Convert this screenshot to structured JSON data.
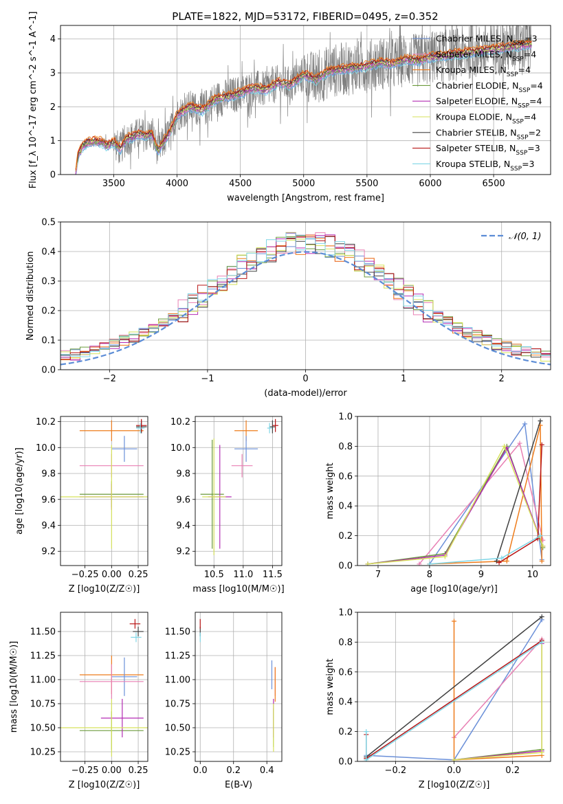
{
  "figure_title": "PLATE=1822, MJD=53172, FIBERID=0495, z=0.352",
  "colors": {
    "Chabrier MILES": "#6a8fd8",
    "Salpeter MILES": "#e87fb3",
    "Kroupa MILES": "#ee7b1a",
    "Chabrier ELODIE": "#6b9a3c",
    "Salpeter ELODIE": "#b32bb3",
    "Kroupa ELODIE": "#d6e25a",
    "Chabrier STELIB": "#404040",
    "Salpeter STELIB": "#b81414",
    "Kroupa STELIB": "#7fd6e6",
    "data": "#7f7f7f",
    "gaussian": "#5b8cd6"
  },
  "chart_data": [
    {
      "id": "spectrum",
      "type": "line",
      "title": "PLATE=1822, MJD=53172, FIBERID=0495, z=0.352",
      "xlabel": "wavelength [Angstrom, rest frame]",
      "ylabel": "Flux [f_λ 10^-17 erg cm^-2 s^-1 A^-1]",
      "xlim": [
        3080,
        6950
      ],
      "ylim": [
        0,
        4.4
      ],
      "xticks": [
        3500,
        4000,
        4500,
        5000,
        5500,
        6000,
        6500
      ],
      "yticks": [
        0,
        1,
        2,
        3,
        4
      ],
      "legend_position": "upper-right",
      "legend": [
        {
          "label": "Chabrier MILES, N",
          "sub": "SSP",
          "suffix": "=3",
          "color": "#6a8fd8"
        },
        {
          "label": "Salpeter MILES, N",
          "sub": "SSP",
          "suffix": "=4",
          "color": "#e87fb3"
        },
        {
          "label": "Kroupa MILES, N",
          "sub": "SSP",
          "suffix": "=4",
          "color": "#ee7b1a"
        },
        {
          "label": "Chabrier ELODIE, N",
          "sub": "SSP",
          "suffix": "=4",
          "color": "#6b9a3c"
        },
        {
          "label": "Salpeter ELODIE, N",
          "sub": "SSP",
          "suffix": "=4",
          "color": "#b32bb3"
        },
        {
          "label": "Kroupa ELODIE, N",
          "sub": "SSP",
          "suffix": "=4",
          "color": "#d6e25a"
        },
        {
          "label": "Chabrier STELIB, N",
          "sub": "SSP",
          "suffix": "=2",
          "color": "#404040"
        },
        {
          "label": "Salpeter STELIB, N",
          "sub": "SSP",
          "suffix": "=3",
          "color": "#b81414"
        },
        {
          "label": "Kroupa STELIB, N",
          "sub": "SSP",
          "suffix": "=3",
          "color": "#7fd6e6"
        }
      ],
      "continuum": {
        "x": [
          3200,
          3220,
          3260,
          3300,
          3350,
          3400,
          3450,
          3500,
          3550,
          3600,
          3650,
          3700,
          3750,
          3800,
          3850,
          3900,
          3950,
          4000,
          4100,
          4200,
          4300,
          4400,
          4500,
          4600,
          4700,
          4800,
          4900,
          5000,
          5100,
          5200,
          5300,
          5400,
          5500,
          5600,
          5700,
          5800,
          5900,
          6000,
          6100,
          6200,
          6300,
          6400,
          6500,
          6600,
          6700,
          6800
        ],
        "y": [
          0.05,
          0.6,
          0.85,
          0.95,
          0.98,
          0.95,
          0.85,
          0.95,
          0.75,
          1.05,
          1.1,
          1.2,
          1.15,
          1.2,
          0.7,
          1.0,
          1.3,
          1.75,
          2.0,
          1.9,
          2.2,
          2.3,
          2.4,
          2.55,
          2.5,
          2.7,
          2.65,
          2.95,
          2.8,
          3.05,
          3.1,
          3.15,
          3.2,
          3.3,
          3.25,
          3.4,
          3.35,
          3.45,
          3.5,
          3.55,
          3.6,
          3.65,
          3.7,
          3.75,
          3.8,
          3.85
        ]
      }
    },
    {
      "id": "residuals",
      "type": "area",
      "xlabel": "(data-model)/error",
      "ylabel": "Normed distribution",
      "xlim": [
        -2.5,
        2.5
      ],
      "ylim": [
        0,
        0.5
      ],
      "xticks": [
        -2,
        -1,
        0,
        1,
        2
      ],
      "yticks": [
        0.0,
        0.1,
        0.2,
        0.3,
        0.4,
        0.5
      ],
      "legend_position": "upper-right",
      "gaussian_label": "𝒩(0, 1)",
      "bin_width": 0.1
    },
    {
      "id": "age_vs_Z",
      "type": "scatter",
      "xlabel": "Z [log10(Z/Z☉)]",
      "ylabel": "age  [log10(age/yr)]",
      "xlim": [
        -0.48,
        0.34
      ],
      "ylim": [
        9.09,
        10.24
      ],
      "xticks": [
        -0.25,
        0.0,
        0.25
      ],
      "yticks": [
        9.2,
        9.4,
        9.6,
        9.8,
        10.0,
        10.2
      ],
      "points": [
        {
          "model": "Kroupa MILES",
          "x": 0.0,
          "xerr": 0.3,
          "y": 10.13,
          "yerr": 0.08
        },
        {
          "model": "Chabrier MILES",
          "x": 0.12,
          "xerr": 0.12,
          "y": 9.99,
          "yerr": 0.1
        },
        {
          "model": "Salpeter MILES",
          "x": 0.0,
          "xerr": 0.3,
          "y": 9.86,
          "yerr": 0.09
        },
        {
          "model": "Chabrier STELIB",
          "x": 0.28,
          "xerr": 0.05,
          "y": 10.16,
          "yerr": 0.05
        },
        {
          "model": "Salpeter STELIB",
          "x": 0.28,
          "xerr": 0.05,
          "y": 10.17,
          "yerr": 0.05
        },
        {
          "model": "Kroupa STELIB",
          "x": 0.27,
          "xerr": 0.04,
          "y": 10.15,
          "yerr": 0.04
        },
        {
          "model": "Chabrier ELODIE",
          "x": 0.0,
          "xerr": 0.3,
          "y": 9.64,
          "yerr": 0.1
        },
        {
          "model": "Salpeter ELODIE",
          "x": 0.0,
          "xerr": 0.3,
          "y": 9.62,
          "yerr": 0.1
        },
        {
          "model": "Kroupa ELODIE",
          "x": 0.0,
          "xerr": 0.5,
          "y": 9.62,
          "yerr": 0.4
        }
      ]
    },
    {
      "id": "age_vs_mass",
      "type": "scatter",
      "xlabel": "mass [log10(M/M☉)]",
      "ylabel": "",
      "xlim": [
        10.18,
        11.66
      ],
      "ylim": [
        9.09,
        10.24
      ],
      "xticks": [
        10.5,
        11.0,
        11.5
      ],
      "yticks": [
        9.2,
        9.4,
        9.6,
        9.8,
        10.0,
        10.2
      ],
      "points": [
        {
          "model": "Kroupa MILES",
          "x": 11.05,
          "xerr": 0.2,
          "y": 10.13,
          "yerr": 0.08
        },
        {
          "model": "Chabrier MILES",
          "x": 11.05,
          "xerr": 0.2,
          "y": 9.99,
          "yerr": 0.1
        },
        {
          "model": "Salpeter MILES",
          "x": 10.98,
          "xerr": 0.18,
          "y": 9.86,
          "yerr": 0.09
        },
        {
          "model": "Chabrier STELIB",
          "x": 11.5,
          "xerr": 0.05,
          "y": 10.16,
          "yerr": 0.05
        },
        {
          "model": "Salpeter STELIB",
          "x": 11.55,
          "xerr": 0.05,
          "y": 10.17,
          "yerr": 0.05
        },
        {
          "model": "Kroupa STELIB",
          "x": 11.45,
          "xerr": 0.04,
          "y": 10.15,
          "yerr": 0.04
        },
        {
          "model": "Chabrier ELODIE",
          "x": 10.47,
          "xerr": 0.2,
          "y": 9.64,
          "yerr": 0.42
        },
        {
          "model": "Salpeter ELODIE",
          "x": 10.6,
          "xerr": 0.2,
          "y": 9.62,
          "yerr": 0.4
        },
        {
          "model": "Kroupa ELODIE",
          "x": 10.5,
          "xerr": 0.2,
          "y": 9.62,
          "yerr": 0.45
        }
      ]
    },
    {
      "id": "weight_vs_age",
      "type": "line",
      "xlabel": "age  [log10(age/yr)]",
      "ylabel": "mass weight",
      "xlim": [
        6.6,
        10.35
      ],
      "ylim": [
        0.0,
        1.0
      ],
      "xticks": [
        7,
        8,
        9,
        10
      ],
      "yticks": [
        0.0,
        0.2,
        0.4,
        0.6,
        0.8,
        1.0
      ],
      "series": [
        {
          "model": "Chabrier MILES",
          "x": [
            8.0,
            9.85,
            10.18
          ],
          "y": [
            0.01,
            0.95,
            0.04
          ]
        },
        {
          "model": "Salpeter MILES",
          "x": [
            7.8,
            9.75,
            10.2
          ],
          "y": [
            0.01,
            0.82,
            0.17
          ]
        },
        {
          "model": "Kroupa MILES",
          "x": [
            8.0,
            9.5,
            10.15,
            10.18
          ],
          "y": [
            0.01,
            0.03,
            0.94,
            0.03
          ]
        },
        {
          "model": "Chabrier ELODIE",
          "x": [
            6.8,
            8.3,
            9.5,
            10.2
          ],
          "y": [
            0.01,
            0.08,
            0.8,
            0.12
          ]
        },
        {
          "model": "Salpeter ELODIE",
          "x": [
            6.8,
            8.3,
            9.5,
            10.2
          ],
          "y": [
            0.01,
            0.07,
            0.79,
            0.13
          ]
        },
        {
          "model": "Kroupa ELODIE",
          "x": [
            6.8,
            8.3,
            9.45,
            10.2
          ],
          "y": [
            0.01,
            0.06,
            0.8,
            0.13
          ]
        },
        {
          "model": "Chabrier STELIB",
          "x": [
            9.3,
            10.15
          ],
          "y": [
            0.03,
            0.97
          ]
        },
        {
          "model": "Salpeter STELIB",
          "x": [
            9.35,
            10.1,
            10.18
          ],
          "y": [
            0.02,
            0.18,
            0.81
          ]
        },
        {
          "model": "Kroupa STELIB",
          "x": [
            8.0,
            9.4,
            10.15
          ],
          "y": [
            0.01,
            0.05,
            0.2
          ]
        }
      ]
    },
    {
      "id": "mass_vs_Z",
      "type": "scatter",
      "xlabel": "Z [log10(Z/Z☉)]",
      "ylabel": "mass [log10(M/M☉)]",
      "xlim": [
        -0.48,
        0.34
      ],
      "ylim": [
        10.15,
        11.7
      ],
      "xticks": [
        -0.25,
        0.0,
        0.25
      ],
      "yticks": [
        10.25,
        10.5,
        10.75,
        11.0,
        11.25,
        11.5
      ],
      "points": [
        {
          "model": "Kroupa MILES",
          "x": 0.0,
          "xerr": 0.3,
          "y": 11.05,
          "yerr": 0.2
        },
        {
          "model": "Chabrier MILES",
          "x": 0.12,
          "xerr": 0.12,
          "y": 11.03,
          "yerr": 0.2
        },
        {
          "model": "Salpeter MILES",
          "x": 0.0,
          "xerr": 0.3,
          "y": 10.98,
          "yerr": 0.18
        },
        {
          "model": "Chabrier STELIB",
          "x": 0.25,
          "xerr": 0.05,
          "y": 11.5,
          "yerr": 0.05
        },
        {
          "model": "Salpeter STELIB",
          "x": 0.22,
          "xerr": 0.05,
          "y": 11.58,
          "yerr": 0.05
        },
        {
          "model": "Kroupa STELIB",
          "x": 0.23,
          "xerr": 0.05,
          "y": 11.44,
          "yerr": 0.05
        },
        {
          "model": "Chabrier ELODIE",
          "x": 0.0,
          "xerr": 0.3,
          "y": 10.47,
          "yerr": 0.2
        },
        {
          "model": "Salpeter ELODIE",
          "x": 0.1,
          "xerr": 0.2,
          "y": 10.6,
          "yerr": 0.2
        },
        {
          "model": "Kroupa ELODIE",
          "x": 0.0,
          "xerr": 0.5,
          "y": 10.5,
          "yerr": 0.3
        }
      ]
    },
    {
      "id": "mass_vs_ebv",
      "type": "scatter",
      "xlabel": "E(B-V)",
      "ylabel": "",
      "xlim": [
        -0.03,
        0.49
      ],
      "ylim": [
        10.15,
        11.7
      ],
      "xticks": [
        0.0,
        0.2,
        0.4
      ],
      "yticks": [
        10.25,
        10.5,
        10.75,
        11.0,
        11.25,
        11.5
      ],
      "points": [
        {
          "model": "Chabrier MILES",
          "x": 0.43,
          "yerr": 0.15,
          "y": 11.05
        },
        {
          "model": "Salpeter MILES",
          "x": 0.45,
          "yerr": 0.15,
          "y": 10.98
        },
        {
          "model": "Kroupa MILES",
          "x": 0.45,
          "yerr": 0.18,
          "y": 10.95
        },
        {
          "model": "Chabrier ELODIE",
          "x": 0.44,
          "yerr": 0.2,
          "y": 10.5
        },
        {
          "model": "Salpeter ELODIE",
          "x": 0.44,
          "yerr": 0.2,
          "y": 10.6
        },
        {
          "model": "Kroupa ELODIE",
          "x": 0.44,
          "yerr": 0.25,
          "y": 10.5
        },
        {
          "model": "Chabrier STELIB",
          "x": 0.0,
          "yerr": 0.05,
          "y": 11.5
        },
        {
          "model": "Salpeter STELIB",
          "x": 0.0,
          "yerr": 0.05,
          "y": 11.58
        },
        {
          "model": "Kroupa STELIB",
          "x": 0.0,
          "yerr": 0.05,
          "y": 11.44
        }
      ]
    },
    {
      "id": "weight_vs_Z",
      "type": "line",
      "xlabel": "Z [log10(Z/Z☉)]",
      "ylabel": "mass weight",
      "xlim": [
        -0.33,
        0.33
      ],
      "ylim": [
        0.0,
        1.0
      ],
      "xticks": [
        -0.2,
        0.0,
        0.2
      ],
      "yticks": [
        0.0,
        0.2,
        0.4,
        0.6,
        0.8,
        1.0
      ],
      "series": [
        {
          "model": "Chabrier MILES",
          "x": [
            -0.3,
            0.0,
            0.3
          ],
          "y": [
            0.04,
            0.01,
            0.95
          ]
        },
        {
          "model": "Salpeter MILES",
          "x": [
            0.0,
            0.3
          ],
          "y": [
            0.16,
            0.82
          ]
        },
        {
          "model": "Kroupa MILES",
          "x": [
            0.0,
            0.0,
            0.3
          ],
          "y": [
            0.94,
            0.01,
            0.04
          ]
        },
        {
          "model": "Chabrier ELODIE",
          "x": [
            0.0,
            0.3,
            0.3
          ],
          "y": [
            0.01,
            0.08,
            0.8
          ]
        },
        {
          "model": "Salpeter ELODIE",
          "x": [
            0.0,
            0.3,
            0.3
          ],
          "y": [
            0.01,
            0.07,
            0.79
          ]
        },
        {
          "model": "Kroupa ELODIE",
          "x": [
            0.0,
            0.3,
            0.3
          ],
          "y": [
            0.01,
            0.06,
            0.8
          ]
        },
        {
          "model": "Chabrier STELIB",
          "x": [
            -0.3,
            0.3
          ],
          "y": [
            0.03,
            0.97
          ]
        },
        {
          "model": "Salpeter STELIB",
          "x": [
            -0.3,
            -0.3,
            0.3
          ],
          "y": [
            0.18,
            0.02,
            0.81
          ]
        },
        {
          "model": "Kroupa STELIB",
          "x": [
            -0.3,
            -0.3,
            0.3
          ],
          "y": [
            0.2,
            0.01,
            0.8
          ]
        }
      ]
    }
  ]
}
